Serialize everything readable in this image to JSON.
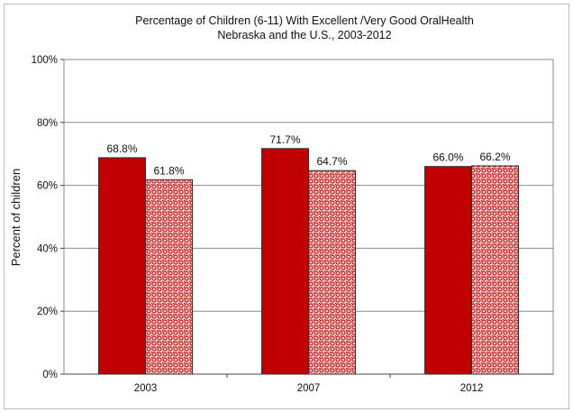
{
  "chart_data": {
    "type": "bar",
    "title": "Percentage of Children (6-11) With Excellent /Very Good  OralHealth",
    "subtitle": "Nebraska and the U.S., 2003-2012",
    "ylabel": "Percent of children",
    "xlabel": "",
    "categories": [
      "2003",
      "2007",
      "2012"
    ],
    "series": [
      {
        "values": [
          68.8,
          71.7,
          66.0
        ],
        "labels": [
          "68.8%",
          "71.7%",
          "66.0%"
        ],
        "color": "#c00000",
        "pattern": "solid"
      },
      {
        "values": [
          61.8,
          64.7,
          66.2
        ],
        "labels": [
          "61.8%",
          "64.7%",
          "66.2%"
        ],
        "color": "#c00000",
        "pattern": "checker"
      }
    ],
    "ylim": [
      0,
      100
    ],
    "yticks": [
      0,
      20,
      40,
      60,
      80,
      100
    ],
    "ytick_labels": [
      "0%",
      "20%",
      "40%",
      "60%",
      "80%",
      "100%"
    ],
    "grid": true,
    "legend": "none"
  }
}
